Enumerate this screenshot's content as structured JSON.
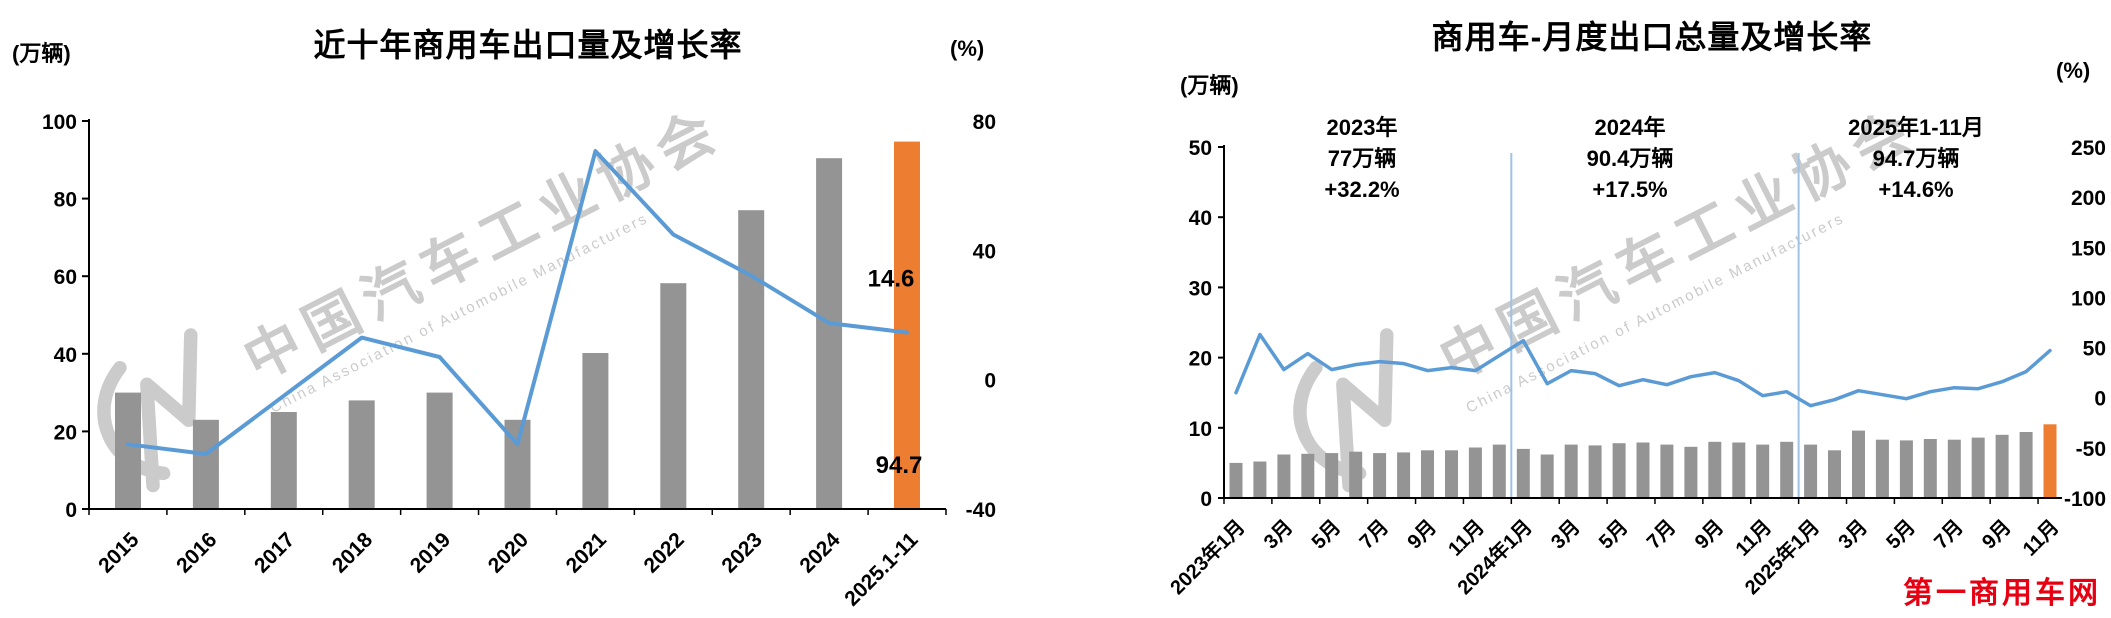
{
  "watermark": {
    "cn": "中国汽车工业协会",
    "en": "China Association of Automobile Manufacturers"
  },
  "footer": {
    "site_watermark": "第一商用车网"
  },
  "palette": {
    "background": "#FFFFFF",
    "bar_gray": "#949494",
    "bar_orange": "#ED7D31",
    "line_blue": "#5B9BD5",
    "separator_blue": "#9DC3E6",
    "axis_black": "#000000",
    "watermark_gray": "#C6C6C6",
    "site_red": "#E60012"
  },
  "chart_data": [
    {
      "id": "annual-exports",
      "type": "bar",
      "combo": "bar+line",
      "title": "近十年商用车出口量及增长率",
      "left_axis_unit": "(万辆)",
      "right_axis_unit": "(%)",
      "left_axis_range": [
        0,
        100
      ],
      "right_axis_range": [
        -40,
        80
      ],
      "left_axis_ticks": [
        0,
        20,
        40,
        60,
        80,
        100
      ],
      "right_axis_ticks": [
        -40,
        0,
        40,
        80
      ],
      "grid": false,
      "legend": "none",
      "categories": [
        "2015",
        "2016",
        "2017",
        "2018",
        "2019",
        "2020",
        "2021",
        "2022",
        "2023",
        "2024",
        "2025.1-11"
      ],
      "series": [
        {
          "name": "出口量",
          "type": "bar",
          "axis": "left",
          "values": [
            30,
            23,
            25,
            28,
            30,
            23,
            40.2,
            58.2,
            77,
            90.4,
            94.7
          ]
        },
        {
          "name": "增长率",
          "type": "line",
          "axis": "right",
          "values": [
            -20,
            -23,
            -5,
            13,
            7,
            -20,
            70.7,
            44.9,
            32.2,
            17.5,
            14.6
          ]
        }
      ],
      "data_labels": {
        "line_end": "14.6",
        "bar_end": "94.7"
      },
      "highlight_last_bar": true
    },
    {
      "id": "monthly-exports",
      "type": "bar",
      "combo": "bar+line",
      "title": "商用车-月度出口总量及增长率",
      "left_axis_unit": "(万辆)",
      "right_axis_unit": "(%)",
      "left_axis_range": [
        0,
        50
      ],
      "right_axis_range": [
        -100,
        250
      ],
      "left_axis_ticks": [
        0,
        10,
        20,
        30,
        40,
        50
      ],
      "right_axis_ticks": [
        -100,
        -50,
        0,
        50,
        100,
        150,
        200,
        250
      ],
      "grid": false,
      "legend": "none",
      "categories": [
        "2023年1月",
        "2月",
        "3月",
        "4月",
        "5月",
        "6月",
        "7月",
        "8月",
        "9月",
        "10月",
        "11月",
        "12月",
        "2024年1月",
        "2月",
        "3月",
        "4月",
        "5月",
        "6月",
        "7月",
        "8月",
        "9月",
        "10月",
        "11月",
        "12月",
        "2025年1月",
        "2月",
        "3月",
        "4月",
        "5月",
        "6月",
        "7月",
        "8月",
        "9月",
        "10月",
        "11月"
      ],
      "x_tick_labels_shown": [
        "2023年1月",
        "3月",
        "5月",
        "7月",
        "9月",
        "11月",
        "2024年1月",
        "3月",
        "5月",
        "7月",
        "9月",
        "11月",
        "2025年1月",
        "3月",
        "5月",
        "7月",
        "9月",
        "11月"
      ],
      "series": [
        {
          "name": "出口量",
          "type": "bar",
          "axis": "left",
          "values": [
            5.0,
            5.2,
            6.2,
            6.3,
            6.4,
            6.6,
            6.4,
            6.5,
            6.8,
            6.8,
            7.2,
            7.6,
            7.0,
            6.2,
            7.6,
            7.5,
            7.8,
            7.9,
            7.6,
            7.3,
            8.0,
            7.9,
            7.6,
            8.0,
            7.6,
            6.8,
            9.6,
            8.3,
            8.2,
            8.4,
            8.3,
            8.6,
            9.0,
            9.4,
            10.5
          ]
        },
        {
          "name": "增长率",
          "type": "line",
          "axis": "right",
          "values": [
            5,
            63,
            28,
            44,
            28,
            33,
            36,
            34,
            27,
            30,
            27,
            42,
            57,
            14,
            27,
            24,
            12,
            18,
            13,
            21,
            25,
            17,
            2,
            6,
            -8,
            -2,
            7,
            3,
            -1,
            6,
            10,
            9,
            16,
            26,
            47
          ]
        }
      ],
      "separator_positions": [
        12,
        24
      ],
      "annotations": [
        {
          "lines": [
            "2023年",
            "77万辆",
            "+32.2%"
          ]
        },
        {
          "lines": [
            "2024年",
            "90.4万辆",
            "+17.5%"
          ]
        },
        {
          "lines": [
            "2025年1-11月",
            "94.7万辆",
            "+14.6%"
          ]
        }
      ],
      "highlight_last_bar": true
    }
  ]
}
